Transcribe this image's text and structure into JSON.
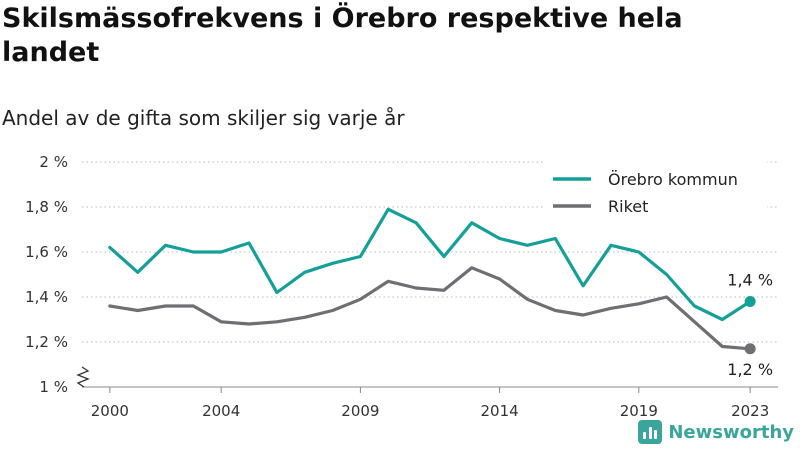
{
  "title": "Skilsmässofrekvens i Örebro respektive hela landet",
  "subtitle": "Andel av de gifta som skiljer sig varje år",
  "brand": {
    "name": "Newsworthy",
    "icon": "bar-chart-logo-icon"
  },
  "colors": {
    "orebro": "#14a098",
    "riket": "#6e6e73",
    "grid": "#bbbbbb",
    "brand": "#3aa59a"
  },
  "chart_data": {
    "type": "line",
    "title": "Skilsmässofrekvens i Örebro respektive hela landet",
    "subtitle": "Andel av de gifta som skiljer sig varje år",
    "xlabel": "",
    "ylabel": "",
    "x": [
      2000,
      2001,
      2002,
      2003,
      2004,
      2005,
      2006,
      2007,
      2008,
      2009,
      2010,
      2011,
      2012,
      2013,
      2014,
      2015,
      2016,
      2017,
      2018,
      2019,
      2020,
      2021,
      2022,
      2023
    ],
    "xticks": [
      2000,
      2004,
      2009,
      2014,
      2019,
      2023
    ],
    "xlim": [
      1999,
      2024
    ],
    "ylim": [
      1.0,
      2.0
    ],
    "yticks": [
      1.0,
      1.2,
      1.4,
      1.6,
      1.8,
      2.0
    ],
    "ytick_labels": [
      "1 %",
      "1,2 %",
      "1,4 %",
      "1,6 %",
      "1,8 %",
      "2 %"
    ],
    "y_axis_break": true,
    "grid": true,
    "legend_position": "top-right",
    "series": [
      {
        "name": "Örebro kommun",
        "color": "#14a098",
        "values": [
          1.62,
          1.51,
          1.63,
          1.6,
          1.6,
          1.64,
          1.42,
          1.51,
          1.55,
          1.58,
          1.79,
          1.73,
          1.58,
          1.73,
          1.66,
          1.63,
          1.66,
          1.45,
          1.63,
          1.6,
          1.5,
          1.36,
          1.3,
          1.38
        ],
        "end_label": "1,4 %"
      },
      {
        "name": "Riket",
        "color": "#6e6e73",
        "values": [
          1.36,
          1.34,
          1.36,
          1.36,
          1.29,
          1.28,
          1.29,
          1.31,
          1.34,
          1.39,
          1.47,
          1.44,
          1.43,
          1.53,
          1.48,
          1.39,
          1.34,
          1.32,
          1.35,
          1.37,
          1.4,
          1.29,
          1.18,
          1.17
        ],
        "end_label": "1,2 %"
      }
    ]
  }
}
